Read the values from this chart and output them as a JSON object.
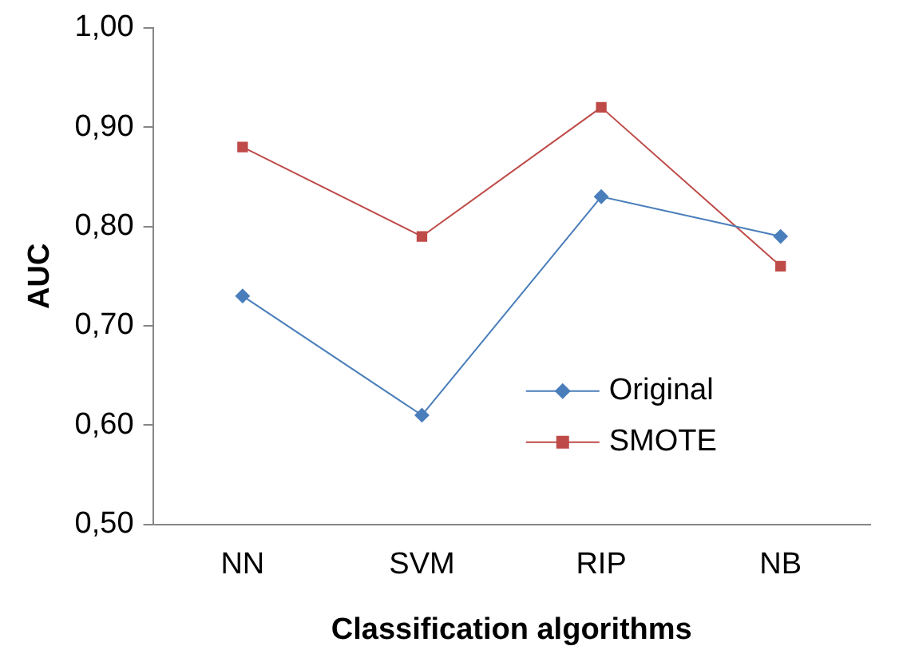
{
  "chart_data": {
    "type": "line",
    "xlabel": "Classification algorithms",
    "ylabel": "AUC",
    "categories": [
      "NN",
      "SVM",
      "RIP",
      "NB"
    ],
    "series": [
      {
        "name": "Original",
        "color": "#4a7ebb",
        "values": [
          0.73,
          0.61,
          0.83,
          0.79
        ],
        "marker": "diamond"
      },
      {
        "name": "SMOTE",
        "color": "#be4b48",
        "values": [
          0.88,
          0.79,
          0.92,
          0.76
        ],
        "marker": "square"
      }
    ],
    "ylim": [
      0.5,
      1.0
    ],
    "yticks": [
      {
        "value": 0.5,
        "label": "0,50"
      },
      {
        "value": 0.6,
        "label": "0,60"
      },
      {
        "value": 0.7,
        "label": "0,70"
      },
      {
        "value": 0.8,
        "label": "0,80"
      },
      {
        "value": 0.9,
        "label": "0,90"
      },
      {
        "value": 1.0,
        "label": "1,00"
      }
    ],
    "grid": false,
    "legend": "right",
    "line_style": "solid"
  }
}
